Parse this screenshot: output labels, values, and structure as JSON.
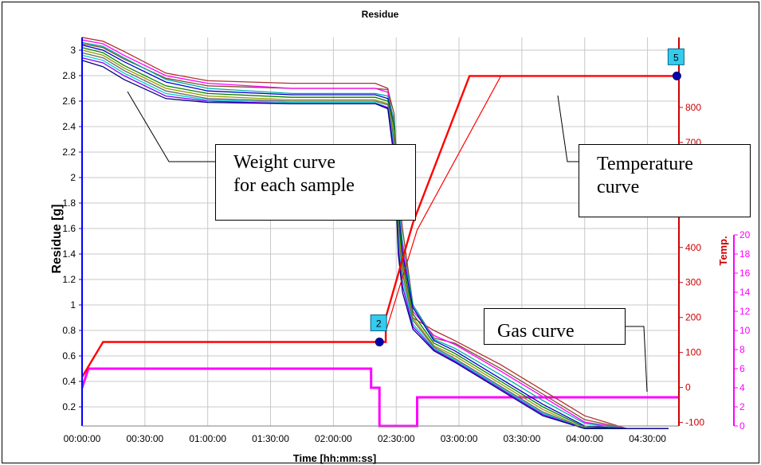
{
  "chart_data": {
    "type": "line",
    "title": "Residue",
    "xlabel": "Time [hh:mm:ss]",
    "ylabel": "Residue [g]",
    "y2label": "Temp.",
    "x_unit": "minutes",
    "xlim": [
      0,
      285
    ],
    "ylim": [
      0.05,
      3.1
    ],
    "y2lim": [
      -110,
      1000
    ],
    "y3lim": [
      0,
      20
    ],
    "x_ticks": [
      "00:00:00",
      "00:30:00",
      "01:00:00",
      "01:30:00",
      "02:00:00",
      "02:30:00",
      "03:00:00",
      "03:30:00",
      "04:00:00",
      "04:30:00"
    ],
    "y_ticks": [
      "3",
      "2.8",
      "2.6",
      "2.4",
      "2.2",
      "2",
      "1.8",
      "1.6",
      "1.4",
      "1.2",
      "1",
      "0.8",
      "0.6",
      "0.4",
      "0.2"
    ],
    "y2_ticks": [
      "800",
      "700",
      "600",
      "500",
      "400",
      "300",
      "200",
      "100",
      "0",
      "-100"
    ],
    "y3_ticks": [
      "20",
      "18",
      "16",
      "14",
      "12",
      "10",
      "8",
      "6",
      "4",
      "2",
      "0"
    ],
    "grid": true,
    "colors": {
      "weight_palette": [
        "#7f4f2f",
        "#b03030",
        "#ff00ff",
        "#00aaaa",
        "#0000cc",
        "#008000",
        "#999900",
        "#666666",
        "#00cccc",
        "#8000ff",
        "#000080"
      ],
      "temperature": "#ff0000",
      "gas": "#ff00ff",
      "temp_axis": "#cc0000",
      "gas_axis": "#ff00ff",
      "left_axis": "#0000ff"
    },
    "weight_series": [
      {
        "x": [
          0,
          10,
          20,
          40,
          60,
          100,
          140,
          146,
          149,
          150,
          151,
          153,
          158,
          168,
          178,
          200,
          220,
          240,
          260,
          280
        ],
        "y": [
          3.05,
          3.02,
          2.93,
          2.78,
          2.72,
          2.7,
          2.7,
          2.69,
          2.5,
          2.2,
          1.9,
          1.6,
          1.0,
          0.74,
          0.7,
          0.5,
          0.3,
          0.1,
          0.03,
          0.03
        ]
      },
      {
        "x": [
          0,
          10,
          20,
          40,
          60,
          100,
          140,
          146,
          149,
          150,
          151,
          153,
          158,
          168,
          178,
          200,
          220,
          240,
          260,
          280
        ],
        "y": [
          3.1,
          3.07,
          2.99,
          2.82,
          2.76,
          2.74,
          2.74,
          2.7,
          2.4,
          2.0,
          1.65,
          1.35,
          0.9,
          0.8,
          0.72,
          0.53,
          0.33,
          0.13,
          0.03,
          0.03
        ]
      },
      {
        "x": [
          0,
          10,
          20,
          40,
          60,
          100,
          140,
          146,
          149,
          150,
          151,
          153,
          158,
          168,
          178,
          200,
          220,
          240,
          260,
          280
        ],
        "y": [
          3.08,
          3.05,
          2.96,
          2.8,
          2.74,
          2.7,
          2.7,
          2.67,
          2.4,
          2.1,
          1.8,
          1.45,
          0.95,
          0.76,
          0.69,
          0.48,
          0.28,
          0.08,
          0.03,
          0.03
        ]
      },
      {
        "x": [
          0,
          10,
          20,
          40,
          60,
          100,
          140,
          146,
          149,
          150,
          151,
          153,
          158,
          168,
          178,
          200,
          220,
          240,
          260,
          280
        ],
        "y": [
          3.06,
          3.03,
          2.94,
          2.77,
          2.7,
          2.66,
          2.66,
          2.64,
          2.45,
          2.2,
          1.85,
          1.5,
          1.0,
          0.73,
          0.66,
          0.45,
          0.25,
          0.07,
          0.03,
          0.03
        ]
      },
      {
        "x": [
          0,
          10,
          20,
          40,
          60,
          100,
          140,
          146,
          149,
          150,
          151,
          153,
          158,
          168,
          178,
          200,
          220,
          240,
          260,
          280
        ],
        "y": [
          3.04,
          3.0,
          2.91,
          2.75,
          2.68,
          2.65,
          2.65,
          2.62,
          2.4,
          2.1,
          1.75,
          1.4,
          0.98,
          0.72,
          0.64,
          0.42,
          0.22,
          0.05,
          0.03,
          0.03
        ]
      },
      {
        "x": [
          0,
          10,
          20,
          40,
          60,
          100,
          140,
          146,
          149,
          150,
          151,
          153,
          158,
          168,
          178,
          200,
          220,
          240,
          260,
          280
        ],
        "y": [
          3.02,
          2.98,
          2.88,
          2.72,
          2.66,
          2.63,
          2.63,
          2.6,
          2.4,
          2.05,
          1.7,
          1.35,
          0.93,
          0.7,
          0.62,
          0.4,
          0.2,
          0.04,
          0.03,
          0.03
        ]
      },
      {
        "x": [
          0,
          10,
          20,
          40,
          60,
          100,
          140,
          146,
          149,
          150,
          151,
          153,
          158,
          168,
          178,
          200,
          220,
          240,
          260,
          280
        ],
        "y": [
          3.0,
          2.96,
          2.86,
          2.7,
          2.64,
          2.61,
          2.61,
          2.58,
          2.35,
          2.0,
          1.6,
          1.3,
          0.9,
          0.68,
          0.6,
          0.38,
          0.18,
          0.03,
          0.03,
          0.03
        ]
      },
      {
        "x": [
          0,
          10,
          20,
          40,
          60,
          100,
          140,
          146,
          149,
          150,
          151,
          153,
          158,
          168,
          178,
          200,
          220,
          240,
          260,
          280
        ],
        "y": [
          2.98,
          2.94,
          2.84,
          2.68,
          2.62,
          2.6,
          2.6,
          2.57,
          2.3,
          1.95,
          1.55,
          1.25,
          0.88,
          0.67,
          0.58,
          0.36,
          0.16,
          0.03,
          0.03,
          0.03
        ]
      },
      {
        "x": [
          0,
          10,
          20,
          40,
          60,
          100,
          140,
          146,
          149,
          150,
          151,
          153,
          158,
          168,
          178,
          200,
          220,
          240,
          260,
          280
        ],
        "y": [
          2.96,
          2.92,
          2.82,
          2.66,
          2.61,
          2.59,
          2.59,
          2.55,
          2.25,
          1.9,
          1.5,
          1.2,
          0.85,
          0.66,
          0.57,
          0.35,
          0.15,
          0.03,
          0.03,
          0.03
        ]
      },
      {
        "x": [
          0,
          10,
          20,
          40,
          60,
          100,
          140,
          146,
          149,
          150,
          151,
          153,
          158,
          168,
          178,
          200,
          220,
          240,
          260,
          280
        ],
        "y": [
          2.94,
          2.9,
          2.8,
          2.64,
          2.6,
          2.58,
          2.58,
          2.55,
          2.2,
          1.85,
          1.45,
          1.15,
          0.83,
          0.65,
          0.56,
          0.34,
          0.14,
          0.03,
          0.03,
          0.03
        ]
      },
      {
        "x": [
          0,
          10,
          20,
          40,
          60,
          100,
          140,
          146,
          149,
          150,
          151,
          153,
          158,
          168,
          178,
          200,
          220,
          240,
          260,
          280
        ],
        "y": [
          2.92,
          2.87,
          2.77,
          2.62,
          2.59,
          2.58,
          2.58,
          2.54,
          2.15,
          1.8,
          1.4,
          1.1,
          0.81,
          0.64,
          0.55,
          0.33,
          0.13,
          0.03,
          0.03,
          0.03
        ]
      }
    ],
    "temperature_series": [
      {
        "x": [
          0,
          10,
          145,
          145,
          158,
          185,
          285
        ],
        "y": [
          30,
          130,
          130,
          200,
          470,
          890,
          890
        ]
      },
      {
        "x": [
          0,
          10,
          145,
          145,
          160,
          200,
          285
        ],
        "y": [
          30,
          130,
          130,
          160,
          450,
          890,
          890
        ]
      }
    ],
    "gas_series": {
      "x": [
        0,
        3,
        138,
        138,
        142,
        142,
        160,
        160,
        285
      ],
      "y": [
        4,
        6,
        6,
        4,
        4,
        0,
        0,
        3,
        3
      ]
    },
    "markers": [
      {
        "label": "2",
        "x": 142,
        "y_temp": 130
      },
      {
        "label": "5",
        "x": 284,
        "y_temp": 890
      }
    ],
    "annotations": [
      {
        "text": "Weight curve\nfor each sample"
      },
      {
        "text": "Temperature\ncurve"
      },
      {
        "text": "Gas curve"
      }
    ]
  }
}
